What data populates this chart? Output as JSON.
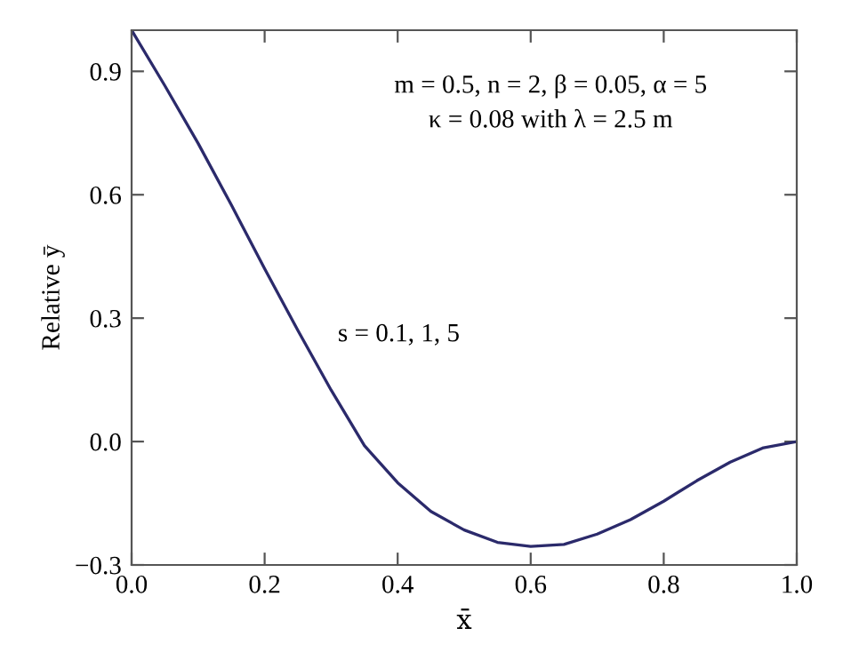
{
  "chart_data": {
    "type": "line",
    "xlabel": "x̄",
    "ylabel": "Relative ȳ",
    "x": [
      0,
      0.05,
      0.1,
      0.15,
      0.2,
      0.25,
      0.3,
      0.35,
      0.4,
      0.45,
      0.5,
      0.55,
      0.6,
      0.65,
      0.7,
      0.75,
      0.8,
      0.85,
      0.9,
      0.95,
      1.0
    ],
    "series": [
      {
        "color": "#2b2a6b",
        "values": [
          1.0,
          0.865,
          0.725,
          0.575,
          0.42,
          0.27,
          0.125,
          -0.01,
          -0.1,
          -0.17,
          -0.215,
          -0.245,
          -0.255,
          -0.25,
          -0.225,
          -0.19,
          -0.145,
          -0.095,
          -0.05,
          -0.015,
          0.0
        ]
      }
    ],
    "xlim": [
      0,
      1.0
    ],
    "xticks": [
      {
        "value": 0,
        "label": "0.0"
      },
      0.2,
      0.4,
      0.6,
      0.8,
      {
        "value": 1.0,
        "label": "1.0"
      }
    ],
    "ylim": [
      -0.3,
      1.0
    ],
    "yticks": [
      {
        "value": -0.3,
        "label": "−0.3"
      },
      {
        "value": 0,
        "label": "0.0"
      },
      0.3,
      0.6,
      0.9
    ],
    "annotations": [
      "m = 0.5, n = 2, β = 0.05, α = 5",
      "κ = 0.08 with λ = 2.5 m",
      "s = 0.1, 1, 5"
    ],
    "grid": false,
    "legend": false
  }
}
